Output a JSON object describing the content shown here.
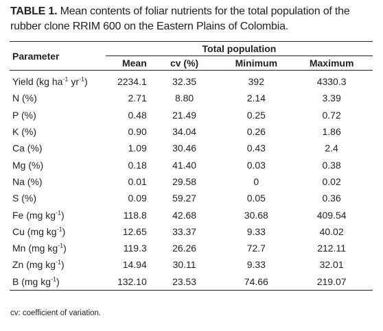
{
  "caption": {
    "label": "TABLE 1.",
    "text": " Mean contents of foliar nutrients for the total population of the rubber clone RRIM 600 on the Eastern Plains of Colombia."
  },
  "table": {
    "param_header": "Parameter",
    "group_header": "Total population",
    "columns": [
      "Mean",
      "cv (%)",
      "Minimum",
      "Maximum"
    ],
    "rows": [
      {
        "name": "Yield (kg ha",
        "sup1": "-1",
        "mid": " yr",
        "sup2": "-1",
        "end": ")",
        "values": [
          "2234.1",
          "32.35",
          "392",
          "4330.3"
        ]
      },
      {
        "name": "N (%)",
        "values": [
          "2.71",
          "8.80",
          "2.14",
          "3.39"
        ]
      },
      {
        "name": "P (%)",
        "values": [
          "0.48",
          "21.49",
          "0.25",
          "0.72"
        ]
      },
      {
        "name": "K (%)",
        "values": [
          "0.90",
          "34.04",
          "0.26",
          "1.86"
        ]
      },
      {
        "name": "Ca (%)",
        "values": [
          "1.09",
          "30.46",
          "0.43",
          "2.4"
        ]
      },
      {
        "name": "Mg (%)",
        "values": [
          "0.18",
          "41.40",
          "0.03",
          "0.38"
        ]
      },
      {
        "name": "Na (%)",
        "values": [
          "0.01",
          "29.58",
          "0",
          "0.02"
        ]
      },
      {
        "name": "S (%)",
        "values": [
          "0.09",
          "59.27",
          "0.05",
          "0.36"
        ]
      },
      {
        "name": "Fe (mg kg",
        "sup1": "-1",
        "end": ")",
        "values": [
          "118.8",
          "42.68",
          "30.68",
          "409.54"
        ]
      },
      {
        "name": "Cu (mg kg",
        "sup1": "-1",
        "end": ")",
        "values": [
          "12.65",
          "33.37",
          "9.33",
          "40.02"
        ]
      },
      {
        "name": "Mn (mg kg",
        "sup1": "-1",
        "end": ")",
        "values": [
          "119.3",
          "26.26",
          "72.7",
          "212.11"
        ]
      },
      {
        "name": "Zn (mg kg",
        "sup1": "-1",
        "end": ")",
        "values": [
          "14.94",
          "30.11",
          "9.33",
          "32.01"
        ]
      },
      {
        "name": "B (mg kg",
        "sup1": "-1",
        "end": ")",
        "values": [
          "132.10",
          "23.53",
          "74.66",
          "219.07"
        ]
      }
    ]
  },
  "footnote": "cv: coefficient of variation."
}
